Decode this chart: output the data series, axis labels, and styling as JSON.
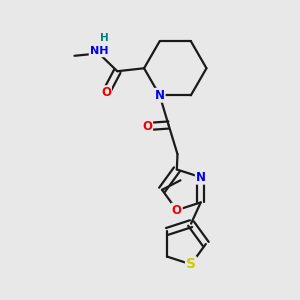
{
  "background_color": "#e8e8e8",
  "bond_color": "#1a1a1a",
  "atom_colors": {
    "N": "#0000ee",
    "O": "#ee0000",
    "S": "#cccc00",
    "H": "#008080",
    "C": "#1a1a1a"
  },
  "lw": 1.6,
  "fs": 8.5
}
